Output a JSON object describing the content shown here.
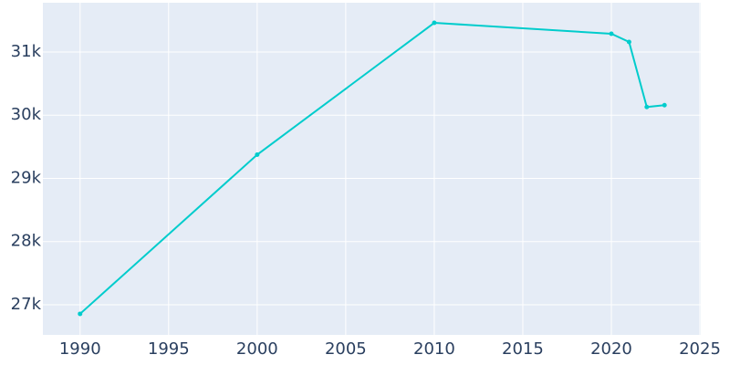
{
  "chart_data": {
    "type": "line",
    "x": [
      1990,
      2000,
      2010,
      2020,
      2021,
      2022,
      2023
    ],
    "series": [
      {
        "color": "#00cccc",
        "values": [
          26856,
          29375,
          31462,
          31289,
          31159,
          30130,
          30159
        ]
      }
    ],
    "xlim": [
      1987.9,
      2025.05
    ],
    "xticks": [
      1990,
      1995,
      2000,
      2005,
      2010,
      2015,
      2020,
      2025
    ],
    "ylim": [
      26523,
      31780
    ],
    "yticks": [
      {
        "value": 27000,
        "label": "27k"
      },
      {
        "value": 28000,
        "label": "28k"
      },
      {
        "value": 29000,
        "label": "29k"
      },
      {
        "value": 30000,
        "label": "30k"
      },
      {
        "value": 31000,
        "label": "31k"
      }
    ],
    "grid": true,
    "background": "#e5ecf6"
  }
}
